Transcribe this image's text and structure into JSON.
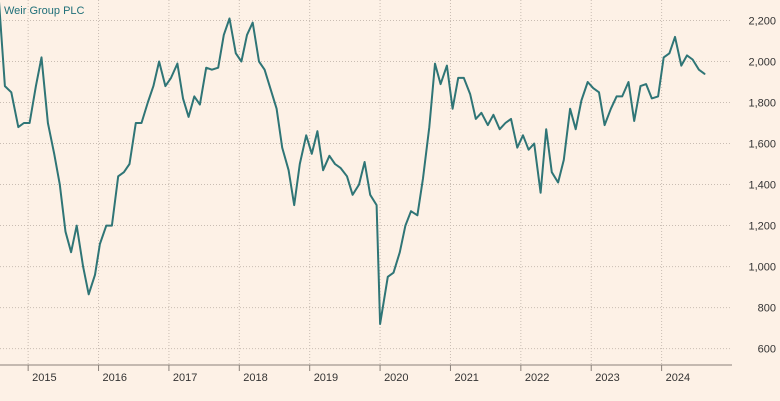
{
  "chart_data": {
    "type": "line",
    "title": "Weir Group PLC",
    "xlabel": "",
    "ylabel": "",
    "ylim": [
      520,
      2300
    ],
    "xlim": [
      2014.6,
      2025.0
    ],
    "yticks": [
      600,
      800,
      1000,
      1200,
      1400,
      1600,
      1800,
      2000,
      2200
    ],
    "ytick_labels": [
      "600",
      "800",
      "1,000",
      "1,200",
      "1,400",
      "1,600",
      "1,800",
      "2,000",
      "2,200"
    ],
    "xticks": [
      2015,
      2016,
      2017,
      2018,
      2019,
      2020,
      2021,
      2022,
      2023,
      2024
    ],
    "xtick_labels": [
      "2015",
      "2016",
      "2017",
      "2018",
      "2019",
      "2020",
      "2021",
      "2022",
      "2023",
      "2024"
    ],
    "grid": true,
    "line_color": "#2f7576",
    "series": [
      {
        "x": [
          2014.58,
          2014.67,
          2014.76,
          2014.86,
          2014.94,
          2015.02,
          2015.11,
          2015.19,
          2015.28,
          2015.37,
          2015.45,
          2015.53,
          2015.61,
          2015.69,
          2015.78,
          2015.86,
          2015.95,
          2016.02,
          2016.11,
          2016.19,
          2016.28,
          2016.36,
          2016.44,
          2016.53,
          2016.61,
          2016.7,
          2016.78,
          2016.86,
          2016.95,
          2017.03,
          2017.12,
          2017.2,
          2017.28,
          2017.36,
          2017.44,
          2017.53,
          2017.61,
          2017.7,
          2017.78,
          2017.86,
          2017.95,
          2018.03,
          2018.11,
          2018.19,
          2018.28,
          2018.36,
          2018.44,
          2018.53,
          2018.61,
          2018.7,
          2018.78,
          2018.86,
          2018.95,
          2019.03,
          2019.11,
          2019.19,
          2019.28,
          2019.36,
          2019.44,
          2019.53,
          2019.61,
          2019.7,
          2019.78,
          2019.86,
          2019.95,
          2020.0,
          2020.11,
          2020.19,
          2020.28,
          2020.36,
          2020.44,
          2020.53,
          2020.61,
          2020.7,
          2020.78,
          2020.86,
          2020.95,
          2021.03,
          2021.11,
          2021.19,
          2021.28,
          2021.36,
          2021.44,
          2021.53,
          2021.61,
          2021.7,
          2021.78,
          2021.86,
          2021.95,
          2022.03,
          2022.11,
          2022.19,
          2022.28,
          2022.36,
          2022.44,
          2022.53,
          2022.61,
          2022.7,
          2022.78,
          2022.86,
          2022.95,
          2023.03,
          2023.11,
          2023.19,
          2023.28,
          2023.36,
          2023.44,
          2023.53,
          2023.61,
          2023.7,
          2023.78,
          2023.86,
          2023.95,
          2024.03,
          2024.11,
          2024.19,
          2024.28,
          2024.36,
          2024.44,
          2024.53,
          2024.61
        ],
        "values": [
          2320,
          1880,
          1850,
          1680,
          1700,
          1700,
          1880,
          2020,
          1700,
          1550,
          1400,
          1170,
          1070,
          1200,
          1000,
          865,
          960,
          1110,
          1200,
          1200,
          1440,
          1460,
          1500,
          1700,
          1700,
          1800,
          1880,
          2000,
          1880,
          1920,
          1990,
          1820,
          1730,
          1830,
          1790,
          1970,
          1960,
          1970,
          2130,
          2210,
          2040,
          2000,
          2130,
          2190,
          2000,
          1960,
          1870,
          1770,
          1580,
          1470,
          1300,
          1500,
          1640,
          1550,
          1660,
          1470,
          1540,
          1500,
          1480,
          1440,
          1350,
          1400,
          1510,
          1350,
          1300,
          720,
          950,
          970,
          1070,
          1200,
          1270,
          1250,
          1430,
          1680,
          1990,
          1890,
          1980,
          1770,
          1920,
          1920,
          1840,
          1720,
          1750,
          1690,
          1740,
          1670,
          1700,
          1720,
          1580,
          1640,
          1570,
          1600,
          1360,
          1670,
          1460,
          1410,
          1520,
          1770,
          1670,
          1810,
          1900,
          1870,
          1850,
          1690,
          1770,
          1830,
          1830,
          1900,
          1710,
          1880,
          1890,
          1820,
          1830,
          2020,
          2040,
          2120,
          1980,
          2030,
          2010,
          1960,
          1940
        ]
      }
    ]
  }
}
